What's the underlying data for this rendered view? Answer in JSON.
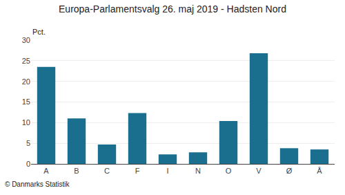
{
  "chart_data": {
    "type": "bar",
    "title": "Europa-Parlamentsvalg 26. maj 2019 - Hadsten Nord",
    "ylabel": "Pct.",
    "categories": [
      "A",
      "B",
      "C",
      "F",
      "I",
      "N",
      "O",
      "V",
      "Ø",
      "Å"
    ],
    "values": [
      23.5,
      11.0,
      4.7,
      12.3,
      2.3,
      2.8,
      10.4,
      26.8,
      3.8,
      3.5
    ],
    "color": "#1a6e8e",
    "ylim": [
      0,
      30
    ],
    "yticks": [
      0,
      5,
      10,
      15,
      20,
      25,
      30
    ],
    "grid": true,
    "annotations": [
      "© Danmarks Statistik"
    ]
  }
}
